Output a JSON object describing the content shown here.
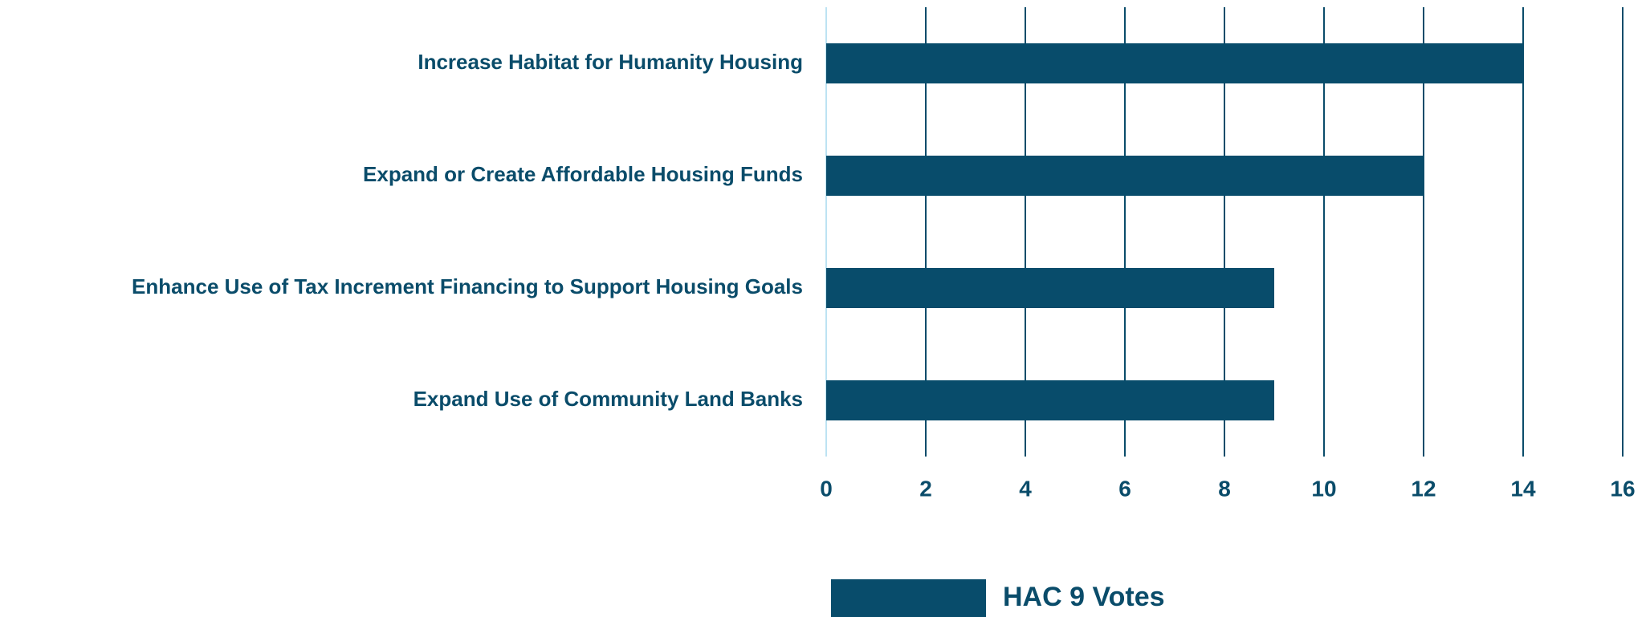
{
  "chart_data": {
    "type": "bar",
    "orientation": "horizontal",
    "categories": [
      "Increase Habitat for Humanity Housing",
      "Expand or Create Affordable Housing Funds",
      "Enhance Use of Tax Increment Financing to Support Housing Goals",
      "Expand Use of Community Land Banks"
    ],
    "series": [
      {
        "name": "HAC 9 Votes",
        "color": "#084c6b",
        "values": [
          14,
          12,
          9,
          9
        ]
      }
    ],
    "xlim": [
      0,
      16
    ],
    "xticks": [
      0,
      2,
      4,
      6,
      8,
      10,
      12,
      14,
      16
    ],
    "grid": true,
    "legend": "bottom"
  }
}
